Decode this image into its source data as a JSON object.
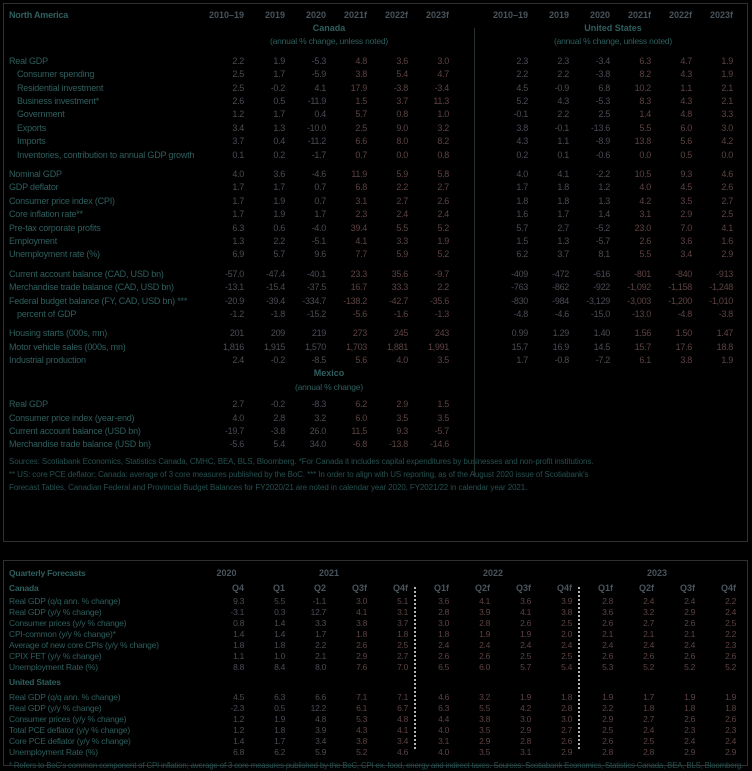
{
  "colors": {
    "background": "#000000",
    "table_border": "#303030",
    "label_teal": "#2e5f5e",
    "header_gray": "#49545c",
    "value_gray": "#4b4b55",
    "forecast_red": "#5e4242",
    "footnote_teal": "#24504f",
    "divider_dotted": "#b5b5b5"
  },
  "annual_table": {
    "title": "North America",
    "year_headers": [
      "2010–19",
      "2019",
      "2020",
      "2021f",
      "2022f",
      "2023f"
    ],
    "canada_header": {
      "name": "Canada",
      "note": "(annual % change, unless noted)"
    },
    "us_header": {
      "name": "United States",
      "note": "(annual % change, unless noted)"
    },
    "blocks": [
      {
        "rows": [
          {
            "label": "Real GDP",
            "indent": false,
            "canada": [
              "2.2",
              "1.9",
              "-5.3",
              "4.8",
              "3.6",
              "3.0"
            ],
            "us": [
              "2.3",
              "2.3",
              "-3.4",
              "6.3",
              "4.7",
              "1.9"
            ]
          },
          {
            "label": "Consumer spending",
            "indent": true,
            "canada": [
              "2.5",
              "1.7",
              "-5.9",
              "3.8",
              "5.4",
              "4.7"
            ],
            "us": [
              "2.2",
              "2.2",
              "-3.8",
              "8.2",
              "4.3",
              "1.9"
            ]
          },
          {
            "label": "Residential investment",
            "indent": true,
            "canada": [
              "2.5",
              "-0.2",
              "4.1",
              "17.9",
              "-3.8",
              "-3.4"
            ],
            "us": [
              "4.5",
              "-0.9",
              "6.8",
              "10.2",
              "1.1",
              "2.1"
            ]
          },
          {
            "label": "Business investment*",
            "indent": true,
            "canada": [
              "2.6",
              "0.5",
              "-11.9",
              "1.5",
              "3.7",
              "11.3"
            ],
            "us": [
              "5.2",
              "4.3",
              "-5.3",
              "8.3",
              "4.3",
              "2.1"
            ]
          },
          {
            "label": "Government",
            "indent": true,
            "canada": [
              "1.2",
              "1.7",
              "0.4",
              "5.7",
              "0.8",
              "1.0"
            ],
            "us": [
              "-0.1",
              "2.2",
              "2.5",
              "1.4",
              "4.8",
              "3.3"
            ]
          },
          {
            "label": "Exports",
            "indent": true,
            "canada": [
              "3.4",
              "1.3",
              "-10.0",
              "2.5",
              "9.0",
              "3.2"
            ],
            "us": [
              "3.8",
              "-0.1",
              "-13.6",
              "5.5",
              "6.0",
              "3.0"
            ]
          },
          {
            "label": "Imports",
            "indent": true,
            "canada": [
              "3.7",
              "0.4",
              "-11.2",
              "6.6",
              "8.0",
              "8.2"
            ],
            "us": [
              "4.3",
              "1.1",
              "-8.9",
              "13.8",
              "5.6",
              "4.2"
            ]
          },
          {
            "label": "Inventories, contribution to annual GDP growth",
            "indent": true,
            "canada": [
              "0.1",
              "0.2",
              "-1.7",
              "0.7",
              "0.0",
              "0.8"
            ],
            "us": [
              "0.2",
              "0.1",
              "-0.6",
              "0.0",
              "0.5",
              "0.0"
            ]
          }
        ]
      },
      {
        "rows": [
          {
            "label": "Nominal GDP",
            "indent": false,
            "canada": [
              "4.0",
              "3.6",
              "-4.6",
              "11.9",
              "5.9",
              "5.8"
            ],
            "us": [
              "4.0",
              "4.1",
              "-2.2",
              "10.5",
              "9.3",
              "4.6"
            ]
          },
          {
            "label": "GDP deflator",
            "indent": false,
            "canada": [
              "1.7",
              "1.7",
              "0.7",
              "6.8",
              "2.2",
              "2.7"
            ],
            "us": [
              "1.7",
              "1.8",
              "1.2",
              "4.0",
              "4.5",
              "2.6"
            ]
          },
          {
            "label": "Consumer price index (CPI)",
            "indent": false,
            "canada": [
              "1.7",
              "1.9",
              "0.7",
              "3.1",
              "2.7",
              "2.6"
            ],
            "us": [
              "1.8",
              "1.8",
              "1.3",
              "4.2",
              "3.5",
              "2.7"
            ]
          },
          {
            "label": "Core inflation rate**",
            "indent": false,
            "canada": [
              "1.7",
              "1.9",
              "1.7",
              "2.3",
              "2.4",
              "2.4"
            ],
            "us": [
              "1.6",
              "1.7",
              "1.4",
              "3.1",
              "2.9",
              "2.5"
            ]
          },
          {
            "label": "Pre-tax corporate profits",
            "indent": false,
            "canada": [
              "6.3",
              "0.6",
              "-4.0",
              "39.4",
              "5.5",
              "5.2"
            ],
            "us": [
              "5.7",
              "2.7",
              "-5.2",
              "23.0",
              "7.0",
              "4.1"
            ]
          },
          {
            "label": "Employment",
            "indent": false,
            "canada": [
              "1.3",
              "2.2",
              "-5.1",
              "4.1",
              "3.3",
              "1.9"
            ],
            "us": [
              "1.5",
              "1.3",
              "-5.7",
              "2.6",
              "3.6",
              "1.6"
            ]
          },
          {
            "label": "Unemployment rate (%)",
            "indent": false,
            "canada": [
              "6.9",
              "5.7",
              "9.6",
              "7.7",
              "5.9",
              "5.2"
            ],
            "us": [
              "6.2",
              "3.7",
              "8.1",
              "5.5",
              "3.4",
              "2.9"
            ]
          }
        ]
      },
      {
        "rows": [
          {
            "label": "Current account balance (CAD, USD bn)",
            "indent": false,
            "canada": [
              "-57.0",
              "-47.4",
              "-40.1",
              "23.3",
              "35.6",
              "-9.7"
            ],
            "us": [
              "-409",
              "-472",
              "-616",
              "-801",
              "-840",
              "-913"
            ]
          },
          {
            "label": "Merchandise trade balance (CAD, USD bn)",
            "indent": false,
            "canada": [
              "-13.1",
              "-15.4",
              "-37.5",
              "16.7",
              "33.3",
              "2.2"
            ],
            "us": [
              "-763",
              "-862",
              "-922",
              "-1,092",
              "-1,158",
              "-1,248"
            ]
          },
          {
            "label": "Federal budget balance (FY, CAD, USD bn) ***",
            "indent": false,
            "canada": [
              "-20.9",
              "-39.4",
              "-334.7",
              "-138.2",
              "-42.7",
              "-35.6"
            ],
            "us": [
              "-830",
              "-984",
              "-3,129",
              "-3,003",
              "-1,200",
              "-1,010"
            ]
          },
          {
            "label": "percent of GDP",
            "indent": true,
            "canada": [
              "-1.2",
              "-1.8",
              "-15.2",
              "-5.6",
              "-1.6",
              "-1.3"
            ],
            "us": [
              "-4.8",
              "-4.6",
              "-15.0",
              "-13.0",
              "-4.8",
              "-3.8"
            ]
          }
        ]
      },
      {
        "rows": [
          {
            "label": "Housing starts (000s, mn)",
            "indent": false,
            "canada": [
              "201",
              "209",
              "219",
              "273",
              "245",
              "243"
            ],
            "us": [
              "0.99",
              "1.29",
              "1.40",
              "1.56",
              "1.50",
              "1.47"
            ]
          },
          {
            "label": "Motor vehicle sales (000s, mn)",
            "indent": false,
            "canada": [
              "1,816",
              "1,915",
              "1,570",
              "1,703",
              "1,881",
              "1,991"
            ],
            "us": [
              "15.7",
              "16.9",
              "14.5",
              "15.7",
              "17.6",
              "18.8"
            ]
          },
          {
            "label": "Industrial production",
            "indent": false,
            "canada": [
              "2.4",
              "-0.2",
              "-8.5",
              "5.6",
              "4.0",
              "3.5"
            ],
            "us": [
              "1.7",
              "-0.8",
              "-7.2",
              "6.1",
              "3.8",
              "1.9"
            ]
          }
        ]
      }
    ],
    "mexico": {
      "name": "Mexico",
      "note": "(annual % change)",
      "rows": [
        {
          "label": "Real GDP",
          "values": [
            "2.7",
            "-0.2",
            "-8.3",
            "6.2",
            "2.9",
            "1.5"
          ]
        },
        {
          "label": "Consumer price index (year-end)",
          "values": [
            "4.0",
            "2.8",
            "3.2",
            "6.0",
            "3.5",
            "3.5"
          ]
        },
        {
          "label": "Current account balance (USD bn)",
          "values": [
            "-19.7",
            "-3.8",
            "26.0",
            "11.5",
            "9.3",
            "-5.7"
          ]
        },
        {
          "label": "Merchandise trade balance (USD bn)",
          "values": [
            "-5.6",
            "5.4",
            "34.0",
            "-6.8",
            "-13.8",
            "-14.6"
          ]
        }
      ]
    },
    "footnotes": [
      "Sources: Scotiabank Economics, Statistics Canada, CMHC, BEA, BLS, Bloomberg. *For Canada it includes capital expenditures by businesses and non-profit institutions.",
      "** US: core PCE deflator; Canada: average of 3 core measures published by the BoC. *** In order to align with US reporting, as of the August 2020 issue of Scotiabank's",
      "Forecast Tables, Canadian Federal and Provincial Budget Balances for FY2020/21 are noted in calendar year 2020, FY2021/22 in calendar year 2021."
    ]
  },
  "quarterly_table": {
    "title": "Quarterly Forecasts",
    "year_groups": [
      {
        "label": "2020",
        "quarters": [
          "Q4"
        ]
      },
      {
        "label": "2021",
        "quarters": [
          "Q1",
          "Q2",
          "Q3f",
          "Q4f"
        ]
      },
      {
        "label": "2022",
        "quarters": [
          "Q1f",
          "Q2f",
          "Q3f",
          "Q4f"
        ]
      },
      {
        "label": "2023",
        "quarters": [
          "Q1f",
          "Q2f",
          "Q3f",
          "Q4f"
        ]
      }
    ],
    "sections": [
      {
        "name": "Canada",
        "rows": [
          {
            "label": "Real GDP (q/q ann. % change)",
            "values": [
              "9.3",
              "5.5",
              "-1.1",
              "3.0",
              "5.1",
              "3.6",
              "4.1",
              "3.6",
              "3.9",
              "2.8",
              "2.4",
              "2.4",
              "2.2"
            ]
          },
          {
            "label": "Real GDP (y/y % change)",
            "values": [
              "-3.1",
              "0.3",
              "12.7",
              "4.1",
              "3.1",
              "2.8",
              "3.9",
              "4.1",
              "3.8",
              "3.6",
              "3.2",
              "2.9",
              "2.4"
            ]
          },
          {
            "label": "Consumer prices (y/y % change)",
            "values": [
              "0.8",
              "1.4",
              "3.3",
              "3.8",
              "3.7",
              "3.0",
              "2.8",
              "2.6",
              "2.5",
              "2.6",
              "2.7",
              "2.6",
              "2.5"
            ]
          },
          {
            "label": "CPI-common (y/y % change)*",
            "values": [
              "1.4",
              "1.4",
              "1.7",
              "1.8",
              "1.8",
              "1.8",
              "1.9",
              "1.9",
              "2.0",
              "2.1",
              "2.1",
              "2.1",
              "2.2"
            ]
          },
          {
            "label": "Average of new core CPIs (y/y % change)",
            "values": [
              "1.8",
              "1.8",
              "2.2",
              "2.6",
              "2.5",
              "2.4",
              "2.4",
              "2.4",
              "2.4",
              "2.4",
              "2.4",
              "2.4",
              "2.3"
            ]
          },
          {
            "label": "CPIX FET (y/y % change)",
            "values": [
              "1.1",
              "1.0",
              "2.1",
              "2.9",
              "2.7",
              "2.6",
              "2.6",
              "2.5",
              "2.5",
              "2.6",
              "2.6",
              "2.6",
              "2.6"
            ]
          },
          {
            "label": "Unemployment Rate (%)",
            "values": [
              "8.8",
              "8.4",
              "8.0",
              "7.6",
              "7.0",
              "6.5",
              "6.0",
              "5.7",
              "5.4",
              "5.3",
              "5.2",
              "5.2",
              "5.2"
            ]
          }
        ]
      },
      {
        "name": "United States",
        "rows": [
          {
            "label": "Real GDP (q/q ann. % change)",
            "values": [
              "4.5",
              "6.3",
              "6.6",
              "7.1",
              "7.1",
              "4.6",
              "3.2",
              "1.9",
              "1.8",
              "1.9",
              "1.7",
              "1.9",
              "1.9"
            ]
          },
          {
            "label": "Real GDP (y/y % change)",
            "values": [
              "-2.3",
              "0.5",
              "12.2",
              "6.1",
              "6.7",
              "6.3",
              "5.5",
              "4.2",
              "2.8",
              "2.2",
              "1.8",
              "1.8",
              "1.8"
            ]
          },
          {
            "label": "Consumer prices (y/y % change)",
            "values": [
              "1.2",
              "1.9",
              "4.8",
              "5.3",
              "4.8",
              "4.4",
              "3.8",
              "3.0",
              "3.0",
              "2.9",
              "2.7",
              "2.6",
              "2.6"
            ]
          },
          {
            "label": "Total PCE deflator (y/y % change)",
            "values": [
              "1.2",
              "1.8",
              "3.9",
              "4.3",
              "4.1",
              "4.0",
              "3.5",
              "2.9",
              "2.7",
              "2.5",
              "2.4",
              "2.3",
              "2.3"
            ]
          },
          {
            "label": "Core PCE deflator (y/y % change)",
            "values": [
              "1.4",
              "1.7",
              "3.4",
              "3.8",
              "3.4",
              "3.1",
              "2.9",
              "2.8",
              "2.6",
              "2.6",
              "2.5",
              "2.4",
              "2.4"
            ]
          },
          {
            "label": "Unemployment Rate (%)",
            "values": [
              "6.8",
              "6.2",
              "5.9",
              "5.2",
              "4.6",
              "4.0",
              "3.5",
              "3.1",
              "2.9",
              "2.8",
              "2.8",
              "2.9",
              "2.9"
            ]
          }
        ]
      }
    ],
    "footnote": "* Refers to BoC's common component of CPI inflation; average of 3 core measures published by the BoC, CPI ex. food, energy and indirect taxes. Sources: Scotiabank Economics, Statistics Canada, BEA, BLS, Bloomberg."
  }
}
